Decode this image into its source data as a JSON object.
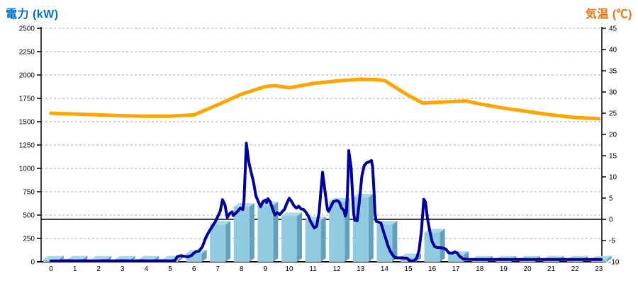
{
  "titles": {
    "left": "電力 (kW)",
    "right": "気温 (℃)"
  },
  "colors": {
    "left_title": "#0070C6",
    "right_title": "#E8740F",
    "power_line": "#000099",
    "temperature_line": "#FFA500",
    "bar_front": "#90CBE1",
    "bar_top": "#ABD9EA",
    "bar_side": "#649FBC",
    "grid": "#AAAAAA",
    "axis": "#000000"
  },
  "chart_data": {
    "type": "combo",
    "description": "Hourly power (bars + dark blue line, left axis kW) and outdoor temperature (orange line, right axis Celsius); solid black horizontal reference line at 0 C",
    "x_axis": {
      "labels": [
        "0",
        "1",
        "2",
        "3",
        "4",
        "5",
        "6",
        "7",
        "8",
        "9",
        "10",
        "11",
        "12",
        "13",
        "14",
        "15",
        "16",
        "17",
        "18",
        "19",
        "20",
        "21",
        "22",
        "23"
      ]
    },
    "left_axis": {
      "title": "電力 (kW)",
      "min": 0,
      "max": 2500,
      "step": 250
    },
    "right_axis": {
      "title": "気温 (℃)",
      "min": -10,
      "max": 45,
      "step": 5
    },
    "reference_line_right_axis_value": 0,
    "grid": "dashed horizontal at each 250 kW",
    "legend": "none",
    "series": [
      {
        "name": "power_bars",
        "type": "bar",
        "axis": "left",
        "values_kw": [
          25,
          25,
          25,
          25,
          25,
          25,
          90,
          400,
          590,
          605,
          490,
          445,
          645,
          690,
          400,
          50,
          315,
          75,
          25,
          25,
          25,
          25,
          25,
          25
        ]
      },
      {
        "name": "power_line",
        "type": "line",
        "axis": "left",
        "points_hour_kw": [
          [
            0,
            10
          ],
          [
            0.3,
            8
          ],
          [
            0.6,
            12
          ],
          [
            1,
            9
          ],
          [
            1.4,
            11
          ],
          [
            1.8,
            8
          ],
          [
            2.2,
            11
          ],
          [
            2.6,
            9
          ],
          [
            3,
            11
          ],
          [
            3.4,
            9
          ],
          [
            3.8,
            11
          ],
          [
            4.2,
            9
          ],
          [
            4.6,
            11
          ],
          [
            5,
            10
          ],
          [
            5.2,
            14
          ],
          [
            5.3,
            55
          ],
          [
            5.45,
            65
          ],
          [
            5.6,
            58
          ],
          [
            5.75,
            52
          ],
          [
            5.9,
            68
          ],
          [
            6.0,
            95
          ],
          [
            6.1,
            108
          ],
          [
            6.2,
            112
          ],
          [
            6.35,
            160
          ],
          [
            6.5,
            260
          ],
          [
            6.65,
            330
          ],
          [
            6.8,
            390
          ],
          [
            6.9,
            430
          ],
          [
            7.0,
            485
          ],
          [
            7.1,
            540
          ],
          [
            7.2,
            665
          ],
          [
            7.3,
            610
          ],
          [
            7.4,
            475
          ],
          [
            7.5,
            515
          ],
          [
            7.6,
            535
          ],
          [
            7.65,
            495
          ],
          [
            7.75,
            520
          ],
          [
            7.85,
            545
          ],
          [
            7.95,
            575
          ],
          [
            8.05,
            560
          ],
          [
            8.1,
            650
          ],
          [
            8.2,
            1270
          ],
          [
            8.3,
            1070
          ],
          [
            8.4,
            960
          ],
          [
            8.5,
            855
          ],
          [
            8.6,
            705
          ],
          [
            8.7,
            645
          ],
          [
            8.8,
            590
          ],
          [
            8.9,
            645
          ],
          [
            9.0,
            660
          ],
          [
            9.05,
            635
          ],
          [
            9.1,
            675
          ],
          [
            9.2,
            645
          ],
          [
            9.3,
            565
          ],
          [
            9.4,
            500
          ],
          [
            9.5,
            525
          ],
          [
            9.6,
            505
          ],
          [
            9.7,
            535
          ],
          [
            9.8,
            560
          ],
          [
            9.9,
            625
          ],
          [
            10.0,
            680
          ],
          [
            10.1,
            645
          ],
          [
            10.2,
            600
          ],
          [
            10.3,
            575
          ],
          [
            10.4,
            595
          ],
          [
            10.5,
            565
          ],
          [
            10.6,
            560
          ],
          [
            10.7,
            530
          ],
          [
            10.8,
            490
          ],
          [
            10.9,
            430
          ],
          [
            11.0,
            385
          ],
          [
            11.05,
            362
          ],
          [
            11.15,
            380
          ],
          [
            11.25,
            520
          ],
          [
            11.35,
            820
          ],
          [
            11.4,
            958
          ],
          [
            11.5,
            760
          ],
          [
            11.6,
            565
          ],
          [
            11.65,
            540
          ],
          [
            11.75,
            590
          ],
          [
            11.85,
            645
          ],
          [
            12.0,
            655
          ],
          [
            12.1,
            640
          ],
          [
            12.2,
            575
          ],
          [
            12.3,
            550
          ],
          [
            12.35,
            490
          ],
          [
            12.4,
            525
          ],
          [
            12.45,
            760
          ],
          [
            12.5,
            1190
          ],
          [
            12.6,
            1000
          ],
          [
            12.7,
            530
          ],
          [
            12.75,
            445
          ],
          [
            12.85,
            440
          ],
          [
            12.95,
            660
          ],
          [
            13.05,
            920
          ],
          [
            13.15,
            1030
          ],
          [
            13.25,
            1060
          ],
          [
            13.35,
            1070
          ],
          [
            13.45,
            1085
          ],
          [
            13.5,
            1020
          ],
          [
            13.55,
            800
          ],
          [
            13.6,
            520
          ],
          [
            13.65,
            435
          ],
          [
            13.75,
            425
          ],
          [
            13.85,
            415
          ],
          [
            13.95,
            330
          ],
          [
            14.05,
            250
          ],
          [
            14.15,
            170
          ],
          [
            14.25,
            110
          ],
          [
            14.35,
            70
          ],
          [
            14.45,
            45
          ],
          [
            14.55,
            42
          ],
          [
            14.75,
            42
          ],
          [
            14.95,
            38
          ],
          [
            15.05,
            14
          ],
          [
            15.15,
            8
          ],
          [
            15.25,
            12
          ],
          [
            15.35,
            40
          ],
          [
            15.45,
            120
          ],
          [
            15.55,
            330
          ],
          [
            15.65,
            670
          ],
          [
            15.72,
            640
          ],
          [
            15.8,
            470
          ],
          [
            15.9,
            330
          ],
          [
            16.0,
            215
          ],
          [
            16.1,
            165
          ],
          [
            16.2,
            152
          ],
          [
            16.35,
            150
          ],
          [
            16.5,
            145
          ],
          [
            16.6,
            128
          ],
          [
            16.7,
            95
          ],
          [
            16.85,
            92
          ],
          [
            16.95,
            105
          ],
          [
            17.05,
            95
          ],
          [
            17.15,
            60
          ],
          [
            17.3,
            30
          ],
          [
            17.5,
            26
          ],
          [
            18,
            25
          ],
          [
            19,
            24
          ],
          [
            20,
            25
          ],
          [
            21,
            24
          ],
          [
            22,
            25
          ],
          [
            23,
            25
          ],
          [
            23.1,
            25
          ]
        ]
      },
      {
        "name": "temperature_line",
        "type": "line",
        "axis": "right",
        "points_hour_c": [
          [
            0,
            25.0
          ],
          [
            1,
            24.8
          ],
          [
            2,
            24.6
          ],
          [
            3,
            24.4
          ],
          [
            4,
            24.3
          ],
          [
            5,
            24.3
          ],
          [
            6,
            24.6
          ],
          [
            7,
            27.0
          ],
          [
            8,
            29.5
          ],
          [
            9,
            31.3
          ],
          [
            9.4,
            31.5
          ],
          [
            10,
            31.0
          ],
          [
            10.5,
            31.5
          ],
          [
            11,
            32.0
          ],
          [
            12,
            32.6
          ],
          [
            13,
            33.0
          ],
          [
            13.7,
            32.9
          ],
          [
            14,
            32.7
          ],
          [
            15,
            29.2
          ],
          [
            15.6,
            27.4
          ],
          [
            16,
            27.5
          ],
          [
            17,
            27.8
          ],
          [
            17.4,
            27.9
          ],
          [
            18,
            27.2
          ],
          [
            19,
            26.2
          ],
          [
            20,
            25.4
          ],
          [
            21,
            24.6
          ],
          [
            22,
            24.0
          ],
          [
            23,
            23.7
          ]
        ]
      }
    ]
  }
}
